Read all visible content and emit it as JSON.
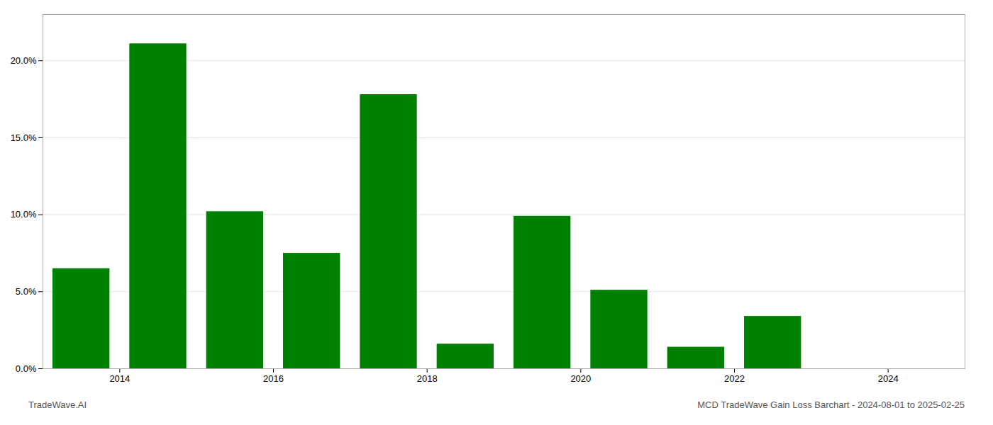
{
  "chart_data": {
    "type": "bar",
    "x": [
      2013.5,
      2014.5,
      2015.5,
      2016.5,
      2017.5,
      2018.5,
      2019.5,
      2020.5,
      2021.5,
      2022.5,
      2023.5
    ],
    "values": [
      0.065,
      0.211,
      0.102,
      0.075,
      0.178,
      0.016,
      0.099,
      0.051,
      0.014,
      0.034,
      0.0
    ],
    "color": "#008000",
    "xlim": [
      2013.0,
      2025.0
    ],
    "xticks": [
      2014,
      2016,
      2018,
      2020,
      2022,
      2024
    ],
    "ylim": [
      0,
      0.23
    ],
    "yticks": [
      {
        "value": 0.0,
        "label": "0.0%"
      },
      {
        "value": 0.05,
        "label": "5.0%"
      },
      {
        "value": 0.1,
        "label": "10.0%"
      },
      {
        "value": 0.15,
        "label": "15.0%"
      },
      {
        "value": 0.2,
        "label": "20.0%"
      }
    ],
    "grid": true,
    "annotations": [
      "TradeWave.AI",
      "MCD TradeWave Gain Loss Barchart - 2024-08-01 to 2025-02-25"
    ]
  }
}
